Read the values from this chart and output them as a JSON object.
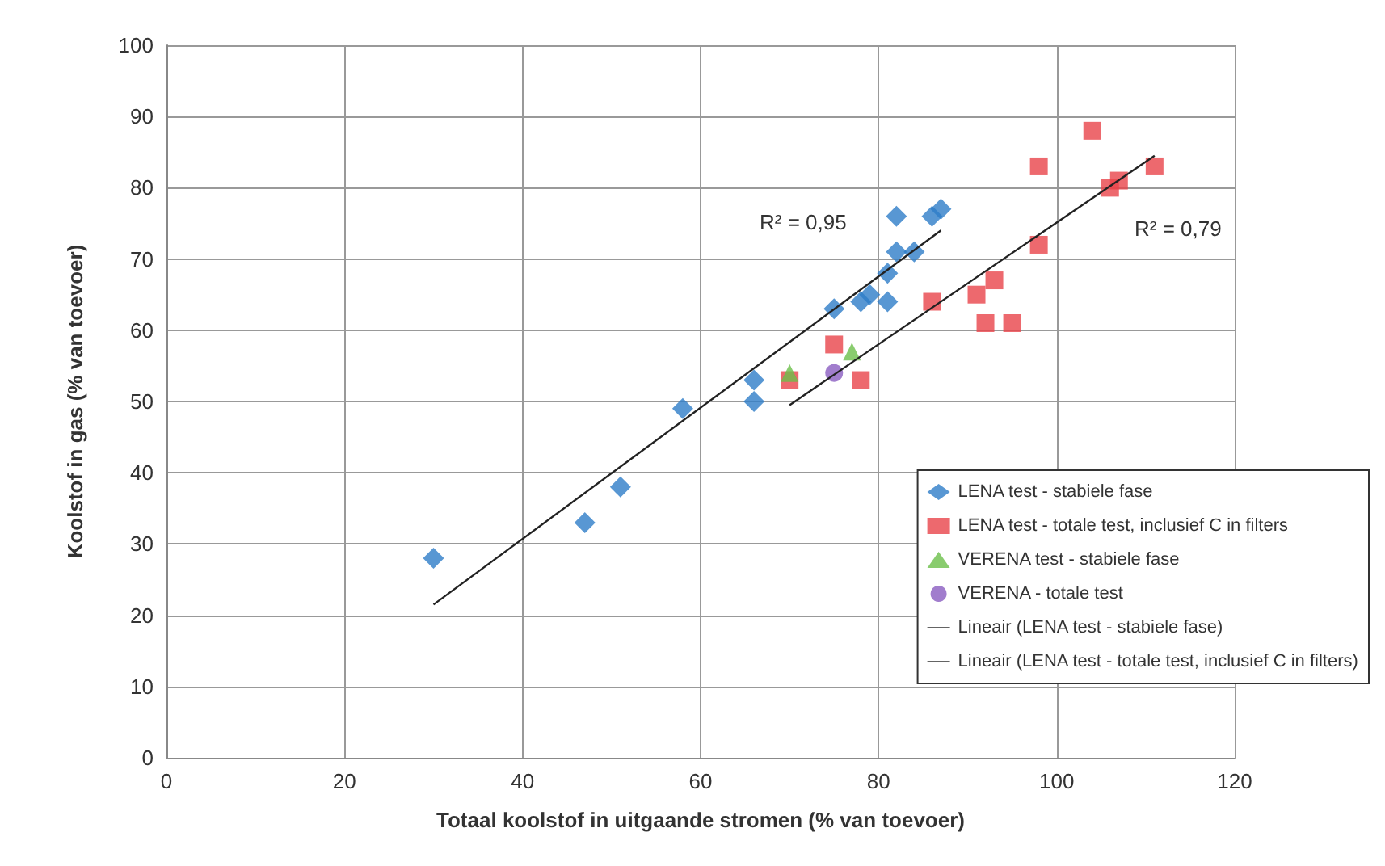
{
  "chart_data": {
    "type": "scatter",
    "xlabel": "Totaal koolstof in uitgaande stromen (% van toevoer)",
    "ylabel": "Koolstof in gas (% van toevoer)",
    "xlim": [
      0,
      120
    ],
    "xticks": [
      0,
      20,
      40,
      60,
      80,
      100,
      120
    ],
    "ylim": [
      0,
      100
    ],
    "yticks": [
      0,
      10,
      20,
      30,
      40,
      50,
      60,
      70,
      80,
      90,
      100
    ],
    "grid": true,
    "legend": "bottom right",
    "annotations": [
      "R² = 0,95",
      "R² = 0,79"
    ],
    "series": [
      {
        "name": "LENA test - stabiele fase",
        "marker": "diamond",
        "color": "#2e7dc8",
        "x": [
          30,
          47,
          51,
          58,
          66,
          66,
          75,
          78,
          79,
          81,
          81,
          82,
          84,
          82,
          86,
          87
        ],
        "values": [
          28,
          33,
          38,
          49,
          50,
          53,
          63,
          64,
          65,
          64,
          68,
          71,
          71,
          76,
          76,
          77
        ]
      },
      {
        "name": "LENA test - totale test, inclusief C in filters",
        "marker": "square",
        "color": "#e8444a",
        "x": [
          70,
          75,
          78,
          86,
          91,
          93,
          92,
          95,
          98,
          98,
          104,
          106,
          107,
          111
        ],
        "values": [
          53,
          58,
          53,
          64,
          65,
          67,
          61,
          61,
          72,
          83,
          88,
          80,
          81,
          83
        ]
      },
      {
        "name": "VERENA test - stabiele fase",
        "marker": "triangle",
        "color": "#6cbf4a",
        "x": [
          70,
          77
        ],
        "values": [
          54,
          57
        ]
      },
      {
        "name": "VERENA - totale test",
        "marker": "circle",
        "color": "#8a5cc0",
        "x": [
          75
        ],
        "values": [
          54
        ]
      },
      {
        "name": "Lineair (LENA test - stabiele fase)",
        "type": "line",
        "marker": "none",
        "color": "#222222",
        "x": [
          30,
          87
        ],
        "values": [
          21.5,
          74
        ]
      },
      {
        "name": "Lineair (LENA test - totale test, inclusief C in filters)",
        "type": "line",
        "marker": "none",
        "color": "#222222",
        "x": [
          70,
          111
        ],
        "values": [
          49.5,
          84.5
        ]
      }
    ]
  }
}
